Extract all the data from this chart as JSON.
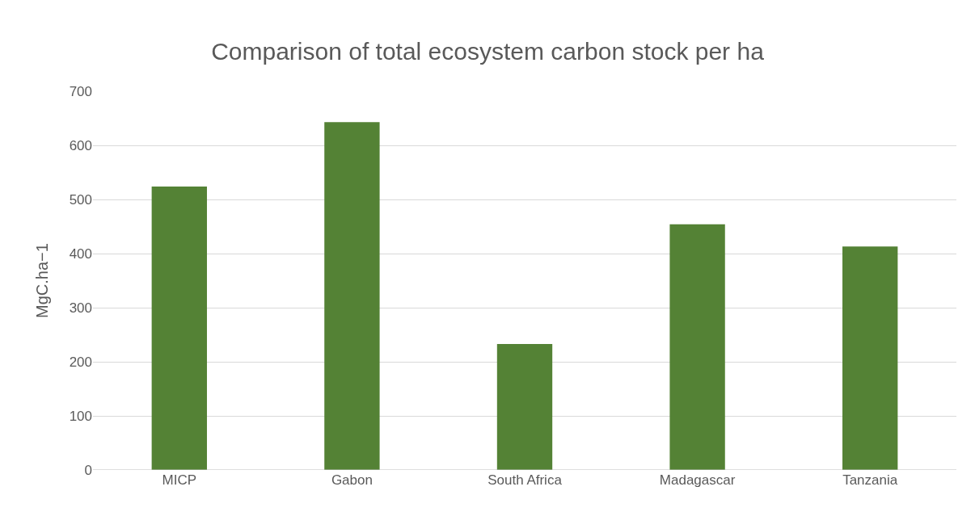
{
  "chart_data": {
    "type": "bar",
    "title": "Comparison of total ecosystem carbon stock per ha",
    "ylabel": "MgC.ha−1",
    "categories": [
      "MICP",
      "Gabon",
      "South Africa",
      "Madagascar",
      "Tanzania"
    ],
    "values": [
      524,
      643,
      233,
      454,
      413
    ],
    "color": "#548235",
    "ylim": [
      0,
      700
    ],
    "yticks": [
      0,
      100,
      200,
      300,
      400,
      500,
      600,
      700
    ],
    "grid": "y",
    "legend": false
  }
}
